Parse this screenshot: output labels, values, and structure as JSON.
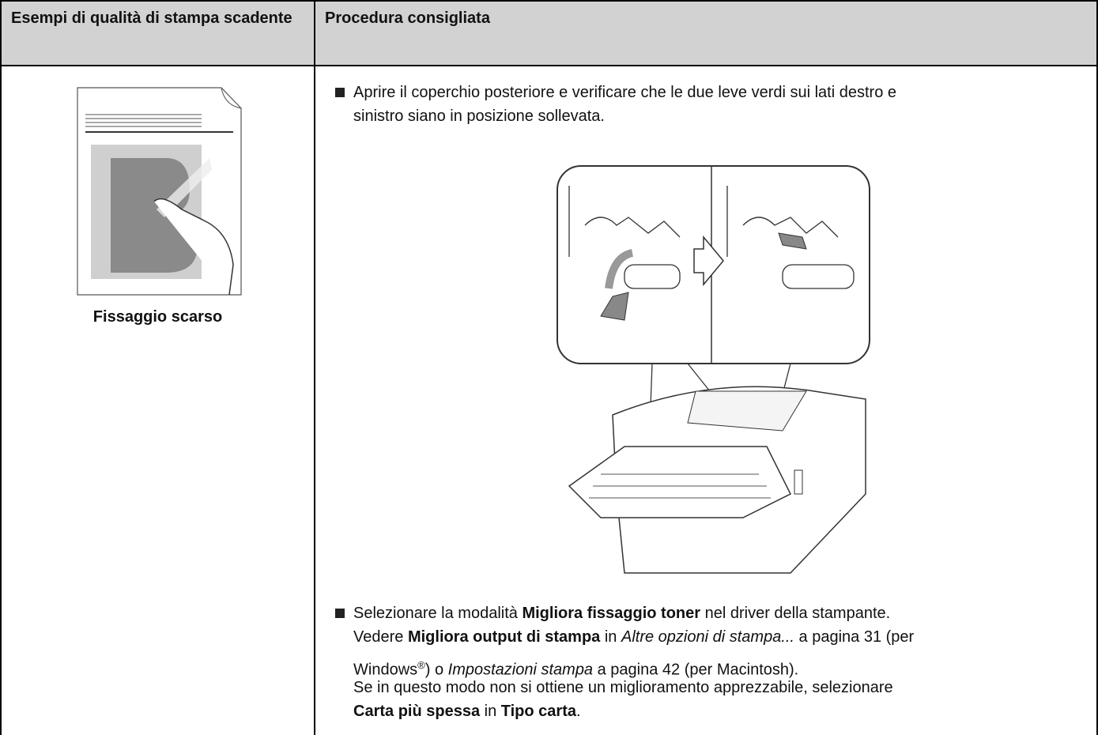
{
  "table": {
    "header": [
      "Esempi di qualità di stampa scadente",
      "Procedura consigliata"
    ],
    "caption": "Fissaggio scarso",
    "bullets": [
      {
        "lines": [
          [
            {
              "text": "Aprire il coperchio posteriore e verificare che le due leve verdi sui lati destro e"
            }
          ],
          [
            {
              "text": "sinistro siano in posizione sollevata."
            }
          ]
        ]
      },
      {
        "lines": [
          [
            {
              "text": "Selezionare la modalità "
            },
            {
              "text": "Migliora fissaggio toner",
              "bold": true
            },
            {
              "text": " nel driver della stampante."
            }
          ],
          [
            {
              "text": "Vedere "
            },
            {
              "text": "Migliora output di stampa",
              "bold": true
            },
            {
              "text": " in "
            },
            {
              "text": "Altre opzioni di stampa...",
              "italic": true
            },
            {
              "text": " a pagina 31 (per"
            }
          ],
          [
            {
              "text": "Windows"
            },
            {
              "text": "®",
              "sup": true
            },
            {
              "text": ") o "
            },
            {
              "text": "Impostazioni stampa",
              "italic": true
            },
            {
              "text": " a pagina 42 (per Macintosh)."
            }
          ],
          [
            {
              "text": "Se in questo modo non si ottiene un miglioramento apprezzabile, selezionare"
            }
          ],
          [
            {
              "text": "Carta più spessa",
              "bold": true
            },
            {
              "text": " in "
            },
            {
              "text": "Tipo carta",
              "bold": true
            },
            {
              "text": "."
            }
          ]
        ]
      }
    ]
  }
}
